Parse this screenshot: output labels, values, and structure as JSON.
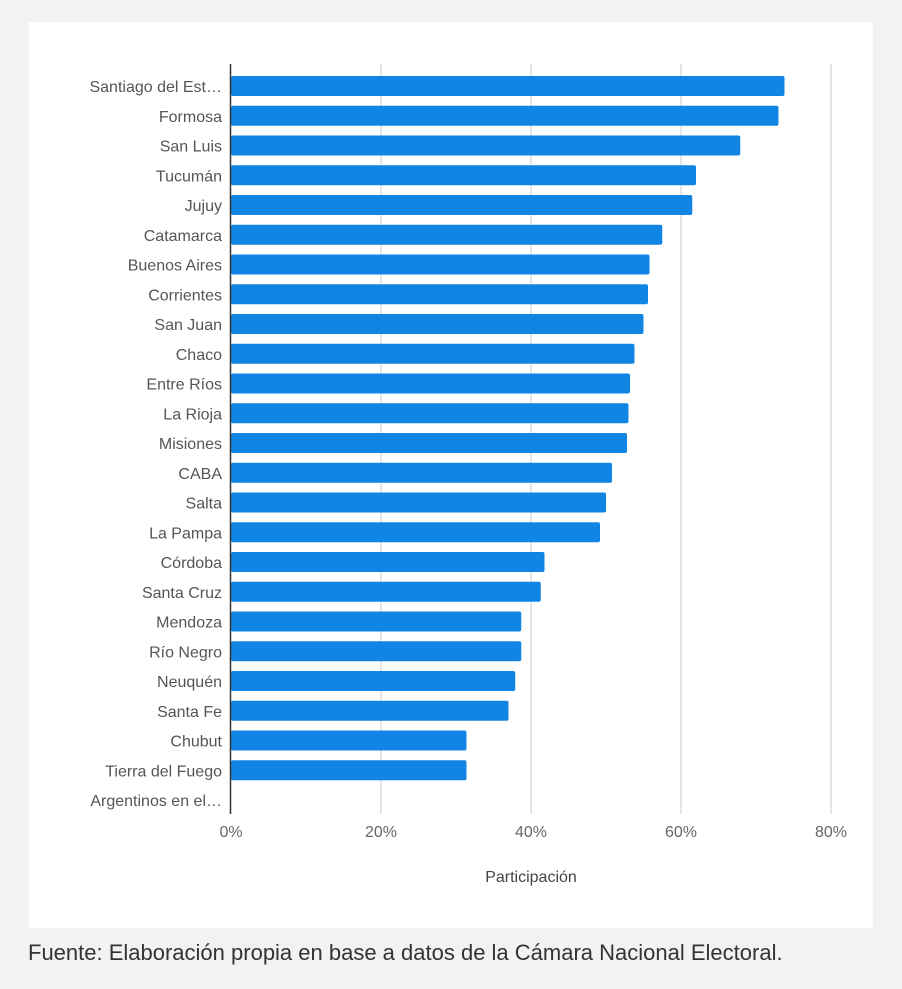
{
  "chart_data": {
    "type": "bar",
    "orientation": "horizontal",
    "categories": [
      "Santiago del Est…",
      "Formosa",
      "San Luis",
      "Tucumán",
      "Jujuy",
      "Catamarca",
      "Buenos Aires",
      "Corrientes",
      "San Juan",
      "Chaco",
      "Entre Ríos",
      "La Rioja",
      "Misiones",
      "CABA",
      "Salta",
      "La Pampa",
      "Córdoba",
      "Santa Cruz",
      "Mendoza",
      "Río Negro",
      "Neuquén",
      "Santa Fe",
      "Chubut",
      "Tierra del Fuego",
      "Argentinos en el…"
    ],
    "values": [
      73.8,
      73.0,
      67.9,
      62.0,
      61.5,
      57.5,
      55.8,
      55.6,
      55.0,
      53.8,
      53.2,
      53.0,
      52.8,
      50.8,
      50.0,
      49.2,
      41.8,
      41.3,
      38.7,
      38.7,
      37.9,
      37.0,
      31.4,
      31.4,
      0
    ],
    "xlabel": "Participación",
    "ylabel": "",
    "xlim": [
      0,
      80
    ],
    "xticks": [
      "0%",
      "20%",
      "40%",
      "60%",
      "80%"
    ],
    "grid": true,
    "bar_color": "#1085e3"
  },
  "caption": "Fuente: Elaboración propia en base a datos de la Cámara Nacional Electoral."
}
